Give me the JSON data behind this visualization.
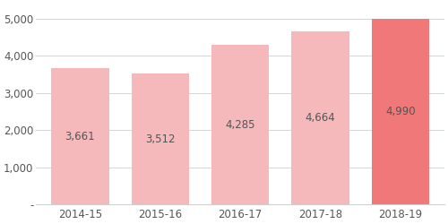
{
  "categories": [
    "2014-15",
    "2015-16",
    "2016-17",
    "2017-18",
    "2018-19"
  ],
  "values": [
    3661,
    3512,
    4285,
    4664,
    4990
  ],
  "bar_colors": [
    "#f5b8bb",
    "#f5b8bb",
    "#f5b8bb",
    "#f5b8bb",
    "#f07878"
  ],
  "label_color": "#555555",
  "yticks": [
    0,
    1000,
    2000,
    3000,
    4000,
    5000
  ],
  "ytick_labels": [
    "-",
    "1,000",
    "2,000",
    "3,000",
    "4,000",
    "5,000"
  ],
  "ylim": [
    0,
    5400
  ],
  "bar_label_fontsize": 8.5,
  "tick_fontsize": 8.5,
  "background_color": "#ffffff",
  "grid_color": "#d0d0d0",
  "bar_width": 0.72
}
